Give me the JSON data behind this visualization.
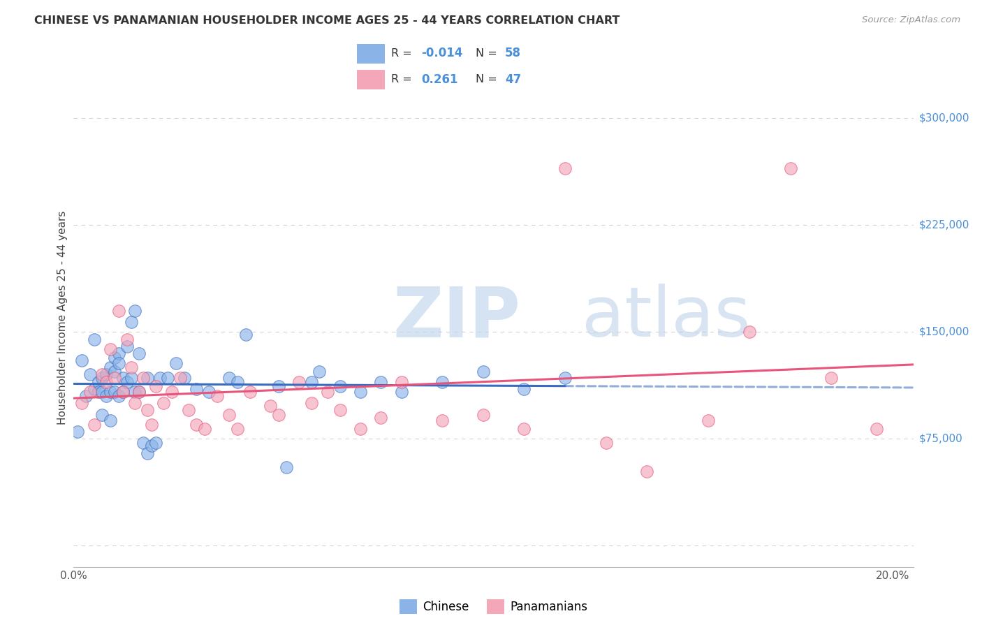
{
  "title": "CHINESE VS PANAMANIAN HOUSEHOLDER INCOME AGES 25 - 44 YEARS CORRELATION CHART",
  "source": "Source: ZipAtlas.com",
  "ylabel": "Householder Income Ages 25 - 44 years",
  "xlim": [
    0.0,
    0.205
  ],
  "ylim": [
    -15000,
    335000
  ],
  "ytick_vals": [
    0,
    75000,
    150000,
    225000,
    300000
  ],
  "ytick_labels": [
    "",
    "$75,000",
    "$150,000",
    "$225,000",
    "$300,000"
  ],
  "xtick_vals": [
    0.0,
    0.05,
    0.1,
    0.15,
    0.2
  ],
  "xtick_labels": [
    "0.0%",
    "",
    "",
    "",
    "20.0%"
  ],
  "chinese_color": "#8ab4e8",
  "panamanian_color": "#f4a7b9",
  "chinese_line_color": "#3a6bbf",
  "panamanian_line_color": "#e8547a",
  "ytick_label_color": "#4a90d9",
  "grid_color": "#c8c8c8",
  "title_color": "#333333",
  "source_color": "#999999",
  "watermark_color": "#dce8f5",
  "chinese_x": [
    0.001,
    0.002,
    0.003,
    0.004,
    0.005,
    0.005,
    0.006,
    0.006,
    0.007,
    0.007,
    0.007,
    0.008,
    0.008,
    0.009,
    0.009,
    0.009,
    0.01,
    0.01,
    0.01,
    0.011,
    0.011,
    0.011,
    0.012,
    0.012,
    0.013,
    0.013,
    0.014,
    0.014,
    0.015,
    0.015,
    0.016,
    0.016,
    0.017,
    0.018,
    0.018,
    0.019,
    0.02,
    0.021,
    0.023,
    0.025,
    0.027,
    0.03,
    0.033,
    0.038,
    0.04,
    0.042,
    0.05,
    0.052,
    0.058,
    0.06,
    0.065,
    0.07,
    0.075,
    0.08,
    0.09,
    0.1,
    0.11,
    0.12
  ],
  "chinese_y": [
    80000,
    130000,
    105000,
    120000,
    145000,
    110000,
    115000,
    108000,
    118000,
    108000,
    92000,
    120000,
    105000,
    125000,
    108000,
    88000,
    132000,
    122000,
    108000,
    135000,
    128000,
    105000,
    118000,
    108000,
    140000,
    115000,
    157000,
    118000,
    165000,
    108000,
    135000,
    108000,
    72000,
    65000,
    118000,
    70000,
    72000,
    118000,
    118000,
    128000,
    118000,
    110000,
    108000,
    118000,
    115000,
    148000,
    112000,
    55000,
    115000,
    122000,
    112000,
    108000,
    115000,
    108000,
    115000,
    122000,
    110000,
    118000
  ],
  "panamanian_x": [
    0.002,
    0.004,
    0.005,
    0.007,
    0.008,
    0.009,
    0.01,
    0.011,
    0.012,
    0.013,
    0.014,
    0.015,
    0.016,
    0.017,
    0.018,
    0.019,
    0.02,
    0.022,
    0.024,
    0.026,
    0.028,
    0.03,
    0.032,
    0.035,
    0.038,
    0.04,
    0.043,
    0.048,
    0.05,
    0.055,
    0.058,
    0.062,
    0.065,
    0.07,
    0.075,
    0.08,
    0.09,
    0.1,
    0.11,
    0.12,
    0.13,
    0.14,
    0.155,
    0.165,
    0.175,
    0.185,
    0.196
  ],
  "panamanian_y": [
    100000,
    108000,
    85000,
    120000,
    115000,
    138000,
    118000,
    165000,
    108000,
    145000,
    125000,
    100000,
    108000,
    118000,
    95000,
    85000,
    112000,
    100000,
    108000,
    118000,
    95000,
    85000,
    82000,
    105000,
    92000,
    82000,
    108000,
    98000,
    92000,
    115000,
    100000,
    108000,
    95000,
    82000,
    90000,
    115000,
    88000,
    92000,
    82000,
    265000,
    72000,
    52000,
    88000,
    150000,
    265000,
    118000,
    82000
  ],
  "legend_r_chinese": "-0.014",
  "legend_n_chinese": "58",
  "legend_r_panamanian": "0.261",
  "legend_n_panamanian": "47"
}
